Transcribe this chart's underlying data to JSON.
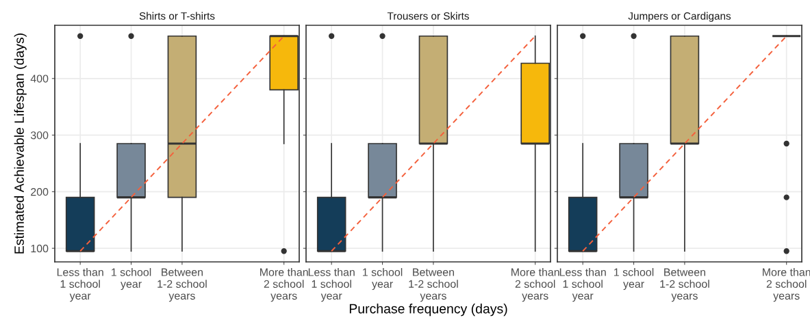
{
  "chart_data": [
    {
      "type": "box",
      "title": "Shirts or T-shirts",
      "ylabel": "Estimated Achievable Lifespan (days)",
      "categories": [
        "Less than\n1 school\nyear",
        "1 school\nyear",
        "Between\n1-2 school\nyears",
        null,
        "More than\n2 school\nyears"
      ],
      "ylim": [
        76,
        494
      ],
      "yticks": [
        100,
        200,
        300,
        400
      ],
      "grid": true,
      "series": [
        {
          "colors": [
            "#143d59",
            "#778899",
            "#c4ae74",
            null,
            "#f6b80c"
          ],
          "boxes": [
            {
              "low": 95,
              "q1": 95,
              "median": 95,
              "q3": 190,
              "high": 285,
              "outliers": [
                475
              ]
            },
            {
              "low": 95,
              "q1": 190,
              "median": 190,
              "q3": 285,
              "high": 285,
              "outliers": [
                475
              ]
            },
            {
              "low": 95,
              "q1": 190,
              "median": 285,
              "q3": 475,
              "high": 475
            },
            null,
            {
              "low": 285,
              "q1": 380,
              "median": 475,
              "q3": 475,
              "high": 475,
              "outliers": [
                95
              ]
            }
          ]
        },
        {
          "type": "line",
          "values": [
            95,
            190,
            285,
            380,
            475
          ],
          "color": "#f4603c",
          "line_style": "dashed"
        }
      ]
    },
    {
      "type": "box",
      "title": "Trousers or Skirts",
      "xlabel": "Purchase frequency (days)",
      "categories": [
        "Less than\n1 school\nyear",
        "1 school\nyear",
        "Between\n1-2 school\nyears",
        null,
        "More than\n2 school\nyears"
      ],
      "ylim": [
        76,
        494
      ],
      "yticks": [
        100,
        200,
        300,
        400
      ],
      "grid": true,
      "tick_labels": "x",
      "series": [
        {
          "colors": [
            "#143d59",
            "#778899",
            "#c4ae74",
            null,
            "#f6b80c"
          ],
          "boxes": [
            {
              "low": 95,
              "q1": 95,
              "median": 95,
              "q3": 190,
              "high": 285,
              "outliers": [
                475
              ]
            },
            {
              "low": 95,
              "q1": 190,
              "median": 190,
              "q3": 285,
              "high": 285,
              "outliers": [
                475
              ]
            },
            {
              "low": 95,
              "q1": 285,
              "median": 285,
              "q3": 475,
              "high": 475
            },
            null,
            {
              "low": 95,
              "q1": 285,
              "median": 285,
              "q3": 427,
              "high": 475
            }
          ]
        },
        {
          "type": "line",
          "values": [
            95,
            190,
            285,
            380,
            475
          ],
          "color": "#f4603c",
          "line_style": "dashed"
        }
      ]
    },
    {
      "type": "box",
      "title": "Jumpers or Cardigans",
      "categories": [
        "Less than\n1 school\nyear",
        "1 school\nyear",
        "Between\n1-2 school\nyears",
        null,
        "More than\n2 school\nyears"
      ],
      "ylim": [
        76,
        494
      ],
      "yticks": [
        100,
        200,
        300,
        400
      ],
      "grid": true,
      "tick_labels": "x",
      "series": [
        {
          "colors": [
            "#143d59",
            "#778899",
            "#c4ae74",
            null,
            null
          ],
          "boxes": [
            {
              "low": 95,
              "q1": 95,
              "median": 95,
              "q3": 190,
              "high": 285,
              "outliers": [
                475
              ]
            },
            {
              "low": 95,
              "q1": 190,
              "median": 190,
              "q3": 285,
              "high": 285,
              "outliers": [
                475
              ]
            },
            {
              "low": 95,
              "q1": 285,
              "median": 285,
              "q3": 475,
              "high": 475
            },
            null,
            {
              "low": 475,
              "q1": 475,
              "median": 475,
              "q3": 475,
              "high": 475,
              "outliers": [
                95,
                190,
                285
              ]
            }
          ]
        },
        {
          "type": "line",
          "values": [
            95,
            190,
            285,
            380,
            475
          ],
          "color": "#f4603c",
          "line_style": "dashed"
        }
      ]
    }
  ]
}
